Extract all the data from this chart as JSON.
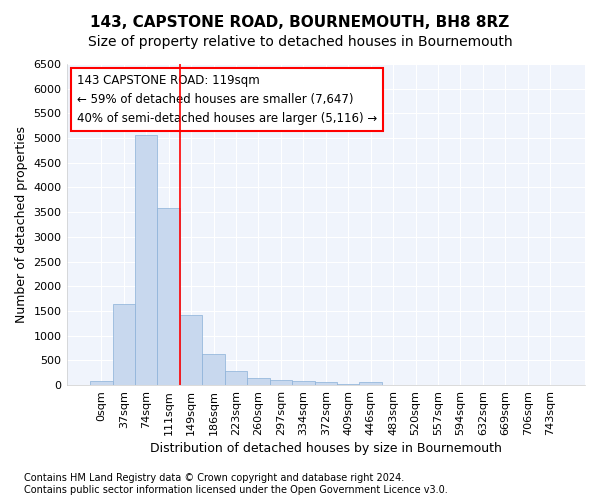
{
  "title": "143, CAPSTONE ROAD, BOURNEMOUTH, BH8 8RZ",
  "subtitle": "Size of property relative to detached houses in Bournemouth",
  "xlabel": "Distribution of detached houses by size in Bournemouth",
  "ylabel": "Number of detached properties",
  "footer_line1": "Contains HM Land Registry data © Crown copyright and database right 2024.",
  "footer_line2": "Contains public sector information licensed under the Open Government Licence v3.0.",
  "bar_labels": [
    "0sqm",
    "37sqm",
    "74sqm",
    "111sqm",
    "149sqm",
    "186sqm",
    "223sqm",
    "260sqm",
    "297sqm",
    "334sqm",
    "372sqm",
    "409sqm",
    "446sqm",
    "483sqm",
    "520sqm",
    "557sqm",
    "594sqm",
    "632sqm",
    "669sqm",
    "706sqm",
    "743sqm"
  ],
  "bar_values": [
    75,
    1650,
    5060,
    3590,
    1410,
    620,
    290,
    145,
    110,
    75,
    55,
    30,
    55,
    0,
    0,
    0,
    0,
    0,
    0,
    0,
    0
  ],
  "bar_color": "#c8d8ee",
  "bar_edge_color": "#8ab0d8",
  "ylim": [
    0,
    6500
  ],
  "yticks": [
    0,
    500,
    1000,
    1500,
    2000,
    2500,
    3000,
    3500,
    4000,
    4500,
    5000,
    5500,
    6000,
    6500
  ],
  "property_line_x": 3.5,
  "annotation_text_line1": "143 CAPSTONE ROAD: 119sqm",
  "annotation_text_line2": "← 59% of detached houses are smaller (7,647)",
  "annotation_text_line3": "40% of semi-detached houses are larger (5,116) →",
  "background_color": "#ffffff",
  "plot_bg_color": "#f0f4fc",
  "grid_color": "#ffffff",
  "title_fontsize": 11,
  "subtitle_fontsize": 10,
  "axis_label_fontsize": 9,
  "tick_fontsize": 8,
  "annotation_fontsize": 8.5,
  "footer_fontsize": 7
}
